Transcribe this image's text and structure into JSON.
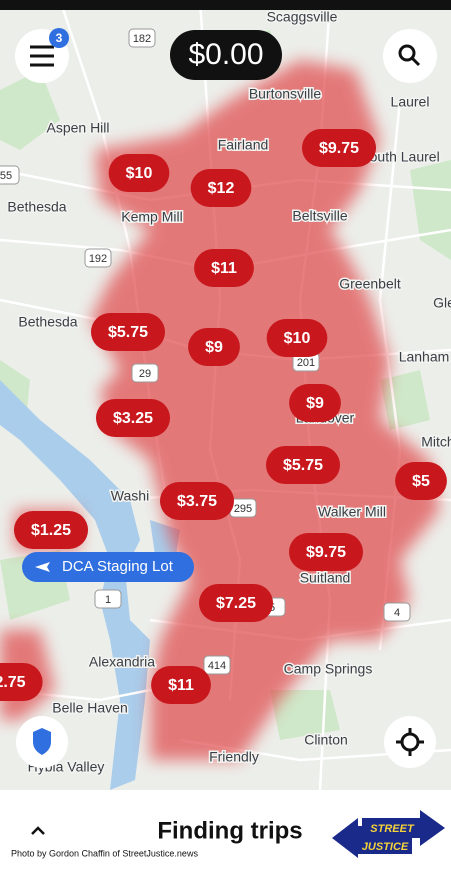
{
  "top_bar": {
    "earnings": "$0.00",
    "notification_count": "3"
  },
  "map": {
    "places": [
      "Scaggsville",
      "Burtonsville",
      "Laurel",
      "Aspen Hill",
      "Fairland",
      "South Laurel",
      "Bethesda",
      "Kemp Mill",
      "Beltsville",
      "Greenbelt",
      "Gle",
      "Bethesda",
      "Lanham",
      "Mitch",
      "Washi",
      "Landover",
      "Walker Mill",
      "Suitland",
      "Alexandria",
      "Camp Springs",
      "Belle Haven",
      "Clinton",
      "Friendly",
      "Hybla Valley"
    ],
    "road_shields": [
      "182",
      "55",
      "192",
      "29",
      "201",
      "295",
      "1",
      "5",
      "4",
      "414"
    ],
    "surge_prices": [
      "$10",
      "$12",
      "$9.75",
      "$11",
      "$5.75",
      "$9",
      "$10",
      "$3.25",
      "$9",
      "$5.75",
      "$5",
      "$3.75",
      "$1.25",
      "$9.75",
      "$7.25",
      "$11",
      "2.75"
    ],
    "staging_lot": "DCA Staging Lot"
  },
  "bottom_bar": {
    "status": "Finding trips",
    "credit": "Photo by Gordon Chaffin of StreetJustice.news",
    "logo": [
      "STREET",
      "JUSTICE"
    ]
  }
}
